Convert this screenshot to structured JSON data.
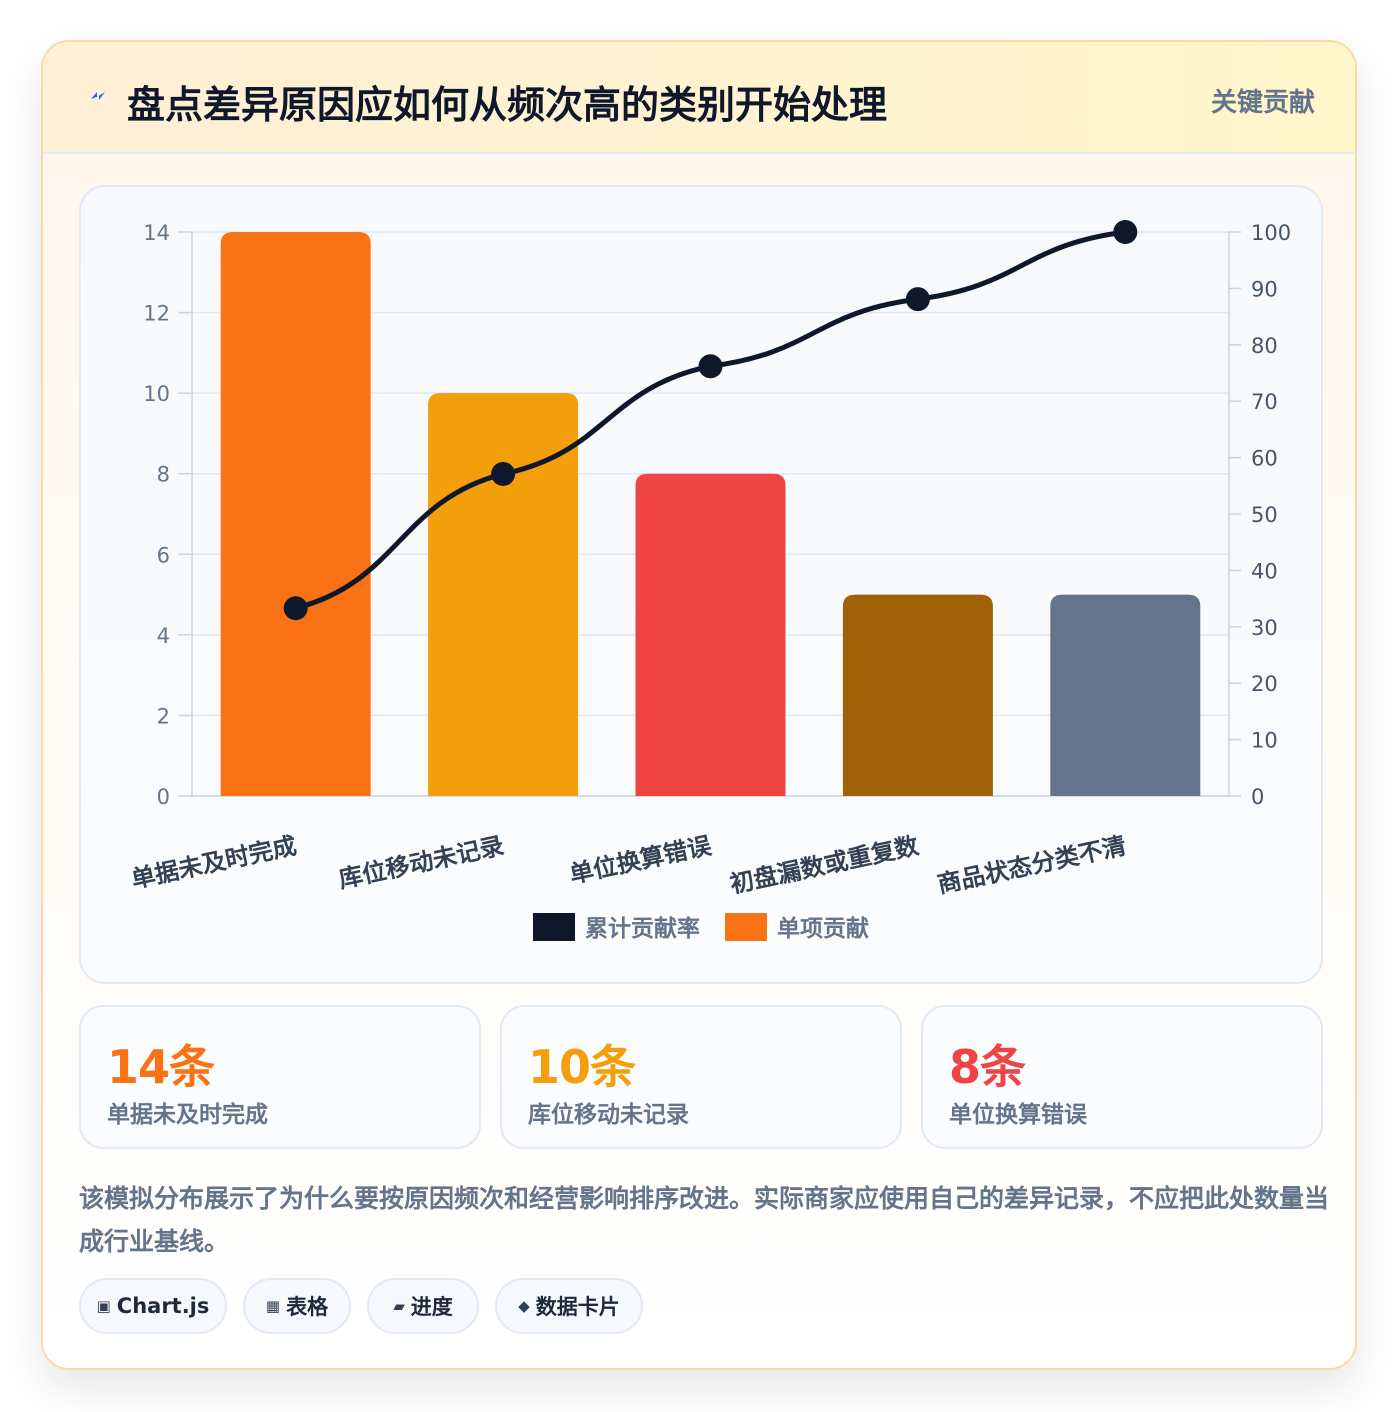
{
  "header": {
    "title": "盘点差异原因应如何从频次高的类别开始处理",
    "tag": "关键贡献",
    "icon": "lightning-icon"
  },
  "chart_data": {
    "type": "bar",
    "categories": [
      "单据未及时完成",
      "库位移动未记录",
      "单位换算错误",
      "初盘漏数或重复数",
      "商品状态分类不清"
    ],
    "series": [
      {
        "name": "单项贡献",
        "type": "bar",
        "values": [
          14,
          10,
          8,
          5,
          5
        ],
        "colors": [
          "#f97316",
          "#f59e0b",
          "#ef4444",
          "#a16207",
          "#64748b"
        ],
        "axis": "left"
      },
      {
        "name": "累计贡献率",
        "type": "line",
        "values": [
          33.3,
          57.1,
          76.2,
          88.1,
          100
        ],
        "color": "#0f172a",
        "axis": "right"
      }
    ],
    "y_left": {
      "min": 0,
      "max": 14,
      "ticks": [
        0,
        2,
        4,
        6,
        8,
        10,
        12,
        14
      ]
    },
    "y_right": {
      "min": 0,
      "max": 100,
      "ticks": [
        0,
        10,
        20,
        30,
        40,
        50,
        60,
        70,
        80,
        90,
        100
      ]
    },
    "legend": {
      "position": "bottom",
      "items": [
        {
          "label": "累计贡献率",
          "color": "#0f172a"
        },
        {
          "label": "单项贡献",
          "color": "#f97316"
        }
      ]
    },
    "grid": true
  },
  "stats": [
    {
      "value": "14条",
      "label": "单据未及时完成",
      "color": "#f97316"
    },
    {
      "value": "10条",
      "label": "库位移动未记录",
      "color": "#f59e0b"
    },
    {
      "value": "8条",
      "label": "单位换算错误",
      "color": "#ef4444"
    }
  ],
  "note": "该模拟分布展示了为什么要按原因频次和经营影响排序改进。实际商家应使用自己的差异记录，不应把此处数量当成行业基线。",
  "chips": [
    {
      "icon": "▣",
      "label": "Chart.js"
    },
    {
      "icon": "▦",
      "label": "表格"
    },
    {
      "icon": "▰",
      "label": "进度"
    },
    {
      "icon": "◆",
      "label": "数据卡片"
    }
  ]
}
